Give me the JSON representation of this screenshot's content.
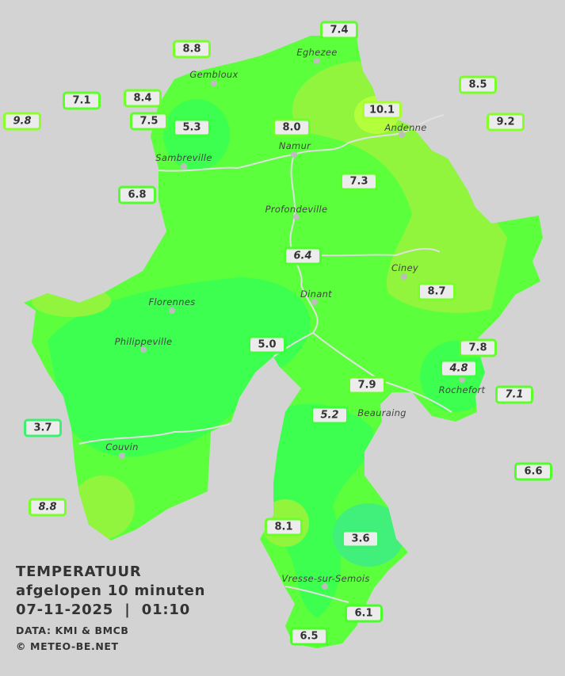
{
  "legend": {
    "title": "TEMPERATUUR",
    "period": "afgelopen 10 minuten",
    "datetime": "07-11-2025  |  01:10",
    "source": "DATA: KMI & BMCB",
    "copyright": "© METEO-BE.NET"
  },
  "colors": {
    "background": "#d3d3d3",
    "base": "#5cff3c",
    "warm": "#90f53c",
    "warmest": "#b4ff3c",
    "cool": "#3cff50",
    "coolest": "#40f07a",
    "river": "#e0e0e0"
  },
  "towns": [
    {
      "name": "Eghezee"
    },
    {
      "name": "Gembloux"
    },
    {
      "name": "Sambreville"
    },
    {
      "name": "Namur"
    },
    {
      "name": "Andenne"
    },
    {
      "name": "Profondeville"
    },
    {
      "name": "Ciney"
    },
    {
      "name": "Dinant"
    },
    {
      "name": "Florennes"
    },
    {
      "name": "Philippeville"
    },
    {
      "name": "Rochefort"
    },
    {
      "name": "Beauraing"
    },
    {
      "name": "Couvin"
    },
    {
      "name": "Vresse-sur-Semois"
    }
  ],
  "stations": [
    {
      "value": "7.4",
      "border": "#5cff2a"
    },
    {
      "value": "8.8",
      "border": "#78ff2a"
    },
    {
      "value": "7.1",
      "border": "#5cff2a"
    },
    {
      "value": "8.4",
      "border": "#70ff2a"
    },
    {
      "value": "9.8",
      "border": "#8cff2a"
    },
    {
      "value": "7.5",
      "border": "#5cff2a"
    },
    {
      "value": "5.3",
      "border": "#3cff3c"
    },
    {
      "value": "8.0",
      "border": "#6cff2a"
    },
    {
      "value": "10.1",
      "border": "#a6ff2a"
    },
    {
      "value": "8.5",
      "border": "#78ff2a"
    },
    {
      "value": "9.2",
      "border": "#84ff2a"
    },
    {
      "value": "7.3",
      "border": "#5cff2a"
    },
    {
      "value": "6.8",
      "border": "#50ff2a"
    },
    {
      "value": "6.4",
      "border": "#4cff2a"
    },
    {
      "value": "8.7",
      "border": "#78ff2a"
    },
    {
      "value": "5.0",
      "border": "#3cff3c"
    },
    {
      "value": "7.8",
      "border": "#60ff2a"
    },
    {
      "value": "4.8",
      "border": "#3cff40"
    },
    {
      "value": "7.9",
      "border": "#64ff2a"
    },
    {
      "value": "7.1",
      "border": "#5cff2a"
    },
    {
      "value": "5.2",
      "border": "#3cff3c"
    },
    {
      "value": "3.7",
      "border": "#3cf070"
    },
    {
      "value": "6.6",
      "border": "#50ff2a"
    },
    {
      "value": "8.8",
      "border": "#78ff2a"
    },
    {
      "value": "8.1",
      "border": "#6cff2a"
    },
    {
      "value": "3.6",
      "border": "#3cf070"
    },
    {
      "value": "6.1",
      "border": "#48ff2a"
    },
    {
      "value": "6.5",
      "border": "#4cff2a"
    }
  ]
}
